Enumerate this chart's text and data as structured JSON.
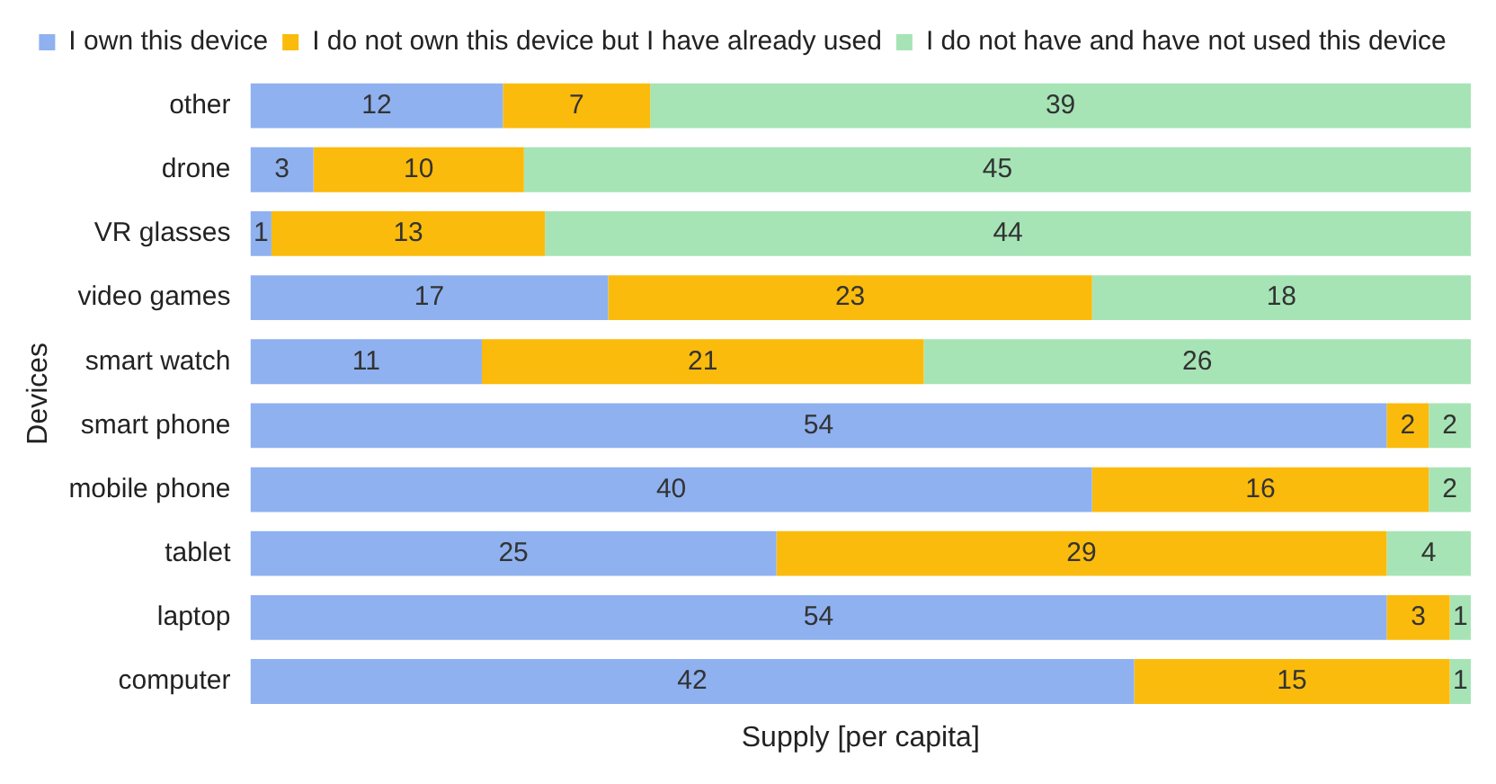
{
  "chart_data": {
    "type": "bar",
    "orientation": "horizontal",
    "stacked": true,
    "xlabel": "Supply [per capita]",
    "ylabel": "Devices",
    "categories": [
      "other",
      "drone",
      "VR glasses",
      "video games",
      "smart watch",
      "smart phone",
      "mobile phone",
      "tablet",
      "laptop",
      "computer"
    ],
    "series": [
      {
        "name": "I own this device",
        "color": "#8fb1ef",
        "values": [
          12,
          3,
          1,
          17,
          11,
          54,
          40,
          25,
          54,
          42
        ]
      },
      {
        "name": "I do not own this device but I have already used",
        "color": "#fbbb0c",
        "values": [
          7,
          10,
          13,
          23,
          21,
          2,
          16,
          29,
          3,
          15
        ]
      },
      {
        "name": "I do not have and have not used this device",
        "color": "#a6e4b6",
        "values": [
          39,
          45,
          44,
          18,
          26,
          2,
          2,
          4,
          1,
          1
        ]
      }
    ],
    "xlim": [
      0,
      58
    ],
    "tick_labels": "y",
    "grid": false,
    "legend": "top",
    "data_labels": true
  }
}
